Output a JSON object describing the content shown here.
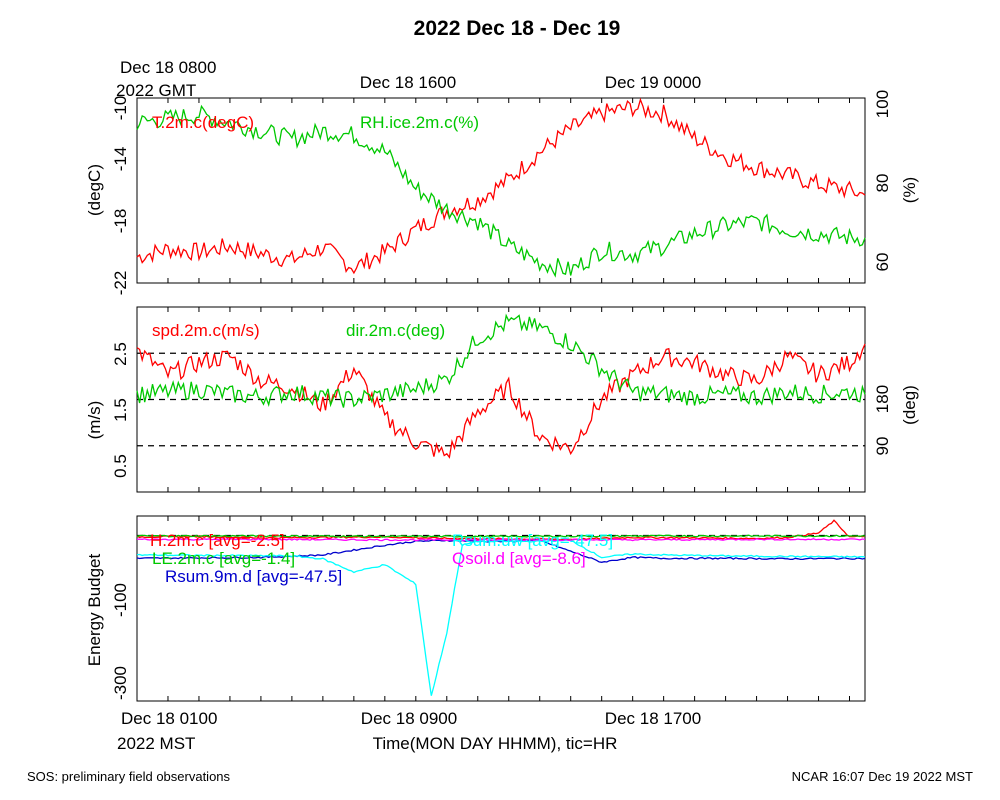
{
  "title": "2022 Dec 18 - Dec 19",
  "top_time_labels": {
    "first_line1": "Dec 18 0800",
    "first_line2": "2022 GMT",
    "second": "Dec 18 1600",
    "third": "Dec 19 0000"
  },
  "bottom_time_labels": {
    "first_line1": "Dec 18 0100",
    "first_line2": "2022 MST",
    "second": "Dec 18 0900",
    "third": "Dec 18 1700"
  },
  "xlabel": "Time(MON DAY HHMM), tic=HR",
  "footer": {
    "left": "SOS: preliminary field observations",
    "right": "NCAR 16:07 Dec 19 2022 MST"
  },
  "colors": {
    "red": "#ff0000",
    "green": "#00c800",
    "blue": "#0000cc",
    "cyan": "#00ffff",
    "magenta": "#ff00ff"
  },
  "chart_data": [
    {
      "type": "line",
      "panel": "temperature-humidity",
      "xlim_hours_mst": [
        1,
        24.5
      ],
      "left_axis": {
        "ylabel": "(degC)",
        "ylim": [
          -22,
          -10
        ],
        "ticks": [
          "-22",
          "-18",
          "-14",
          "-10"
        ]
      },
      "right_axis": {
        "ylabel": "(%)",
        "ylim": [
          55,
          100
        ],
        "ticks": [
          "60",
          "80",
          "100"
        ]
      },
      "series": [
        {
          "name": "T.2m.c(degC)",
          "color": "red",
          "axis": "left",
          "x": [
            1,
            2,
            3,
            4,
            5,
            6,
            7,
            8,
            9,
            10,
            11,
            12,
            13,
            14,
            15,
            16,
            17,
            18,
            19,
            20,
            21,
            22,
            23,
            24,
            24.5
          ],
          "y": [
            -20.3,
            -19.8,
            -20.0,
            -19.6,
            -20.1,
            -20.5,
            -19.7,
            -21.0,
            -20.0,
            -18.5,
            -17.3,
            -16.6,
            -15.3,
            -13.5,
            -12.0,
            -11.0,
            -10.6,
            -11.0,
            -12.6,
            -13.8,
            -14.5,
            -15.0,
            -15.6,
            -16.0,
            -16.3
          ]
        },
        {
          "name": "RH.ice.2m.c(%)",
          "color": "green",
          "axis": "right",
          "x": [
            1,
            2,
            3,
            4,
            5,
            6,
            7,
            8,
            9,
            10,
            11,
            12,
            13,
            14,
            15,
            16,
            17,
            18,
            19,
            20,
            21,
            22,
            23,
            24,
            24.5
          ],
          "y": [
            94,
            95,
            96,
            94,
            92,
            90,
            92,
            91,
            87,
            78,
            73,
            70,
            64,
            60,
            58,
            63,
            62,
            64,
            67,
            69,
            70,
            68,
            67,
            66,
            66
          ]
        }
      ]
    },
    {
      "type": "line",
      "panel": "wind",
      "xlim_hours_mst": [
        1,
        24.5
      ],
      "left_axis": {
        "ylabel": "(m/s)",
        "ylim": [
          0.2,
          3.2
        ],
        "ticks": [
          "0.5",
          "1.5",
          "2.5"
        ]
      },
      "right_axis": {
        "ylabel": "(deg)",
        "ylim": [
          0,
          360
        ],
        "ticks": [
          "90",
          "180"
        ]
      },
      "reference_lines_deg": [
        90,
        180,
        270
      ],
      "series": [
        {
          "name": "spd.2m.c(m/s)",
          "color": "red",
          "axis": "left",
          "x": [
            1,
            2,
            3,
            4,
            5,
            6,
            7,
            8,
            9,
            10,
            11,
            12,
            13,
            14,
            15,
            16,
            17,
            18,
            19,
            20,
            21,
            22,
            23,
            24,
            24.5
          ],
          "y": [
            2.5,
            2.1,
            2.3,
            2.4,
            2.0,
            1.9,
            1.6,
            2.2,
            1.4,
            1.0,
            0.8,
            1.5,
            1.9,
            1.1,
            0.9,
            1.7,
            2.1,
            2.4,
            2.3,
            2.1,
            2.0,
            2.4,
            2.1,
            2.3,
            2.6
          ]
        },
        {
          "name": "dir.2m.c(deg)",
          "color": "green",
          "axis": "right",
          "x": [
            1,
            2,
            3,
            4,
            5,
            6,
            7,
            8,
            9,
            10,
            11,
            12,
            13,
            14,
            15,
            16,
            17,
            18,
            19,
            20,
            21,
            22,
            23,
            24,
            24.5
          ],
          "y": [
            190,
            195,
            200,
            190,
            185,
            195,
            185,
            180,
            190,
            200,
            220,
            300,
            330,
            320,
            290,
            240,
            195,
            190,
            185,
            190,
            185,
            195,
            190,
            195,
            190
          ]
        }
      ]
    },
    {
      "type": "line",
      "panel": "energy-budget",
      "xlim_hours_mst": [
        1,
        24.5
      ],
      "left_axis": {
        "ylabel": "Energy Budget",
        "ylim": [
          -340,
          40
        ],
        "ticks": [
          "-300",
          "-100"
        ]
      },
      "reference_lines": [
        0
      ],
      "series": [
        {
          "name": "H.2m.c [avg=-2.5]",
          "color": "red",
          "x": [
            1,
            3,
            5,
            7,
            9,
            11,
            13,
            15,
            17,
            19,
            21,
            22,
            23,
            23.5,
            24,
            24.5
          ],
          "y": [
            -3,
            -2,
            -5,
            -4,
            -3,
            -6,
            -7,
            -8,
            -4,
            -5,
            -6,
            -4,
            5,
            30,
            -3,
            -2
          ]
        },
        {
          "name": "LE.2m.c [avg=-1.4]",
          "color": "green",
          "x": [
            1,
            5,
            9,
            13,
            17,
            21,
            24.5
          ],
          "y": [
            -1,
            -1,
            -2,
            -2,
            -1,
            -1,
            -1
          ]
        },
        {
          "name": "Rsum.9m.d [avg=-47.5]",
          "color": "blue",
          "x": [
            1,
            3,
            5,
            7,
            8,
            9,
            10,
            11,
            12,
            13,
            14,
            16,
            17,
            18,
            20,
            22,
            24.5
          ],
          "y": [
            -47,
            -46,
            -45,
            -40,
            -30,
            -20,
            -12,
            -10,
            -12,
            -12,
            -10,
            -55,
            -45,
            -47,
            -47,
            -48,
            -47
          ]
        },
        {
          "name": "Rsum.uw [avg=-47.5]",
          "color": "cyan",
          "x": [
            1,
            6,
            7,
            8,
            9,
            10,
            10.5,
            11,
            11.5,
            12,
            13,
            14,
            15,
            16,
            17,
            18,
            20,
            22,
            24.5
          ],
          "y": [
            -40,
            -42,
            -48,
            -75,
            -60,
            -100,
            -330,
            -200,
            -20,
            -12,
            -12,
            -12,
            -10,
            -45,
            -38,
            -40,
            -42,
            -43,
            -44
          ]
        },
        {
          "name": "Qsoil.d [avg=-8.6]",
          "color": "magenta",
          "x": [
            1,
            5,
            9,
            13,
            17,
            21,
            24.5
          ],
          "y": [
            -8,
            -8,
            -9,
            -9,
            -9,
            -8,
            -8
          ]
        }
      ]
    }
  ]
}
